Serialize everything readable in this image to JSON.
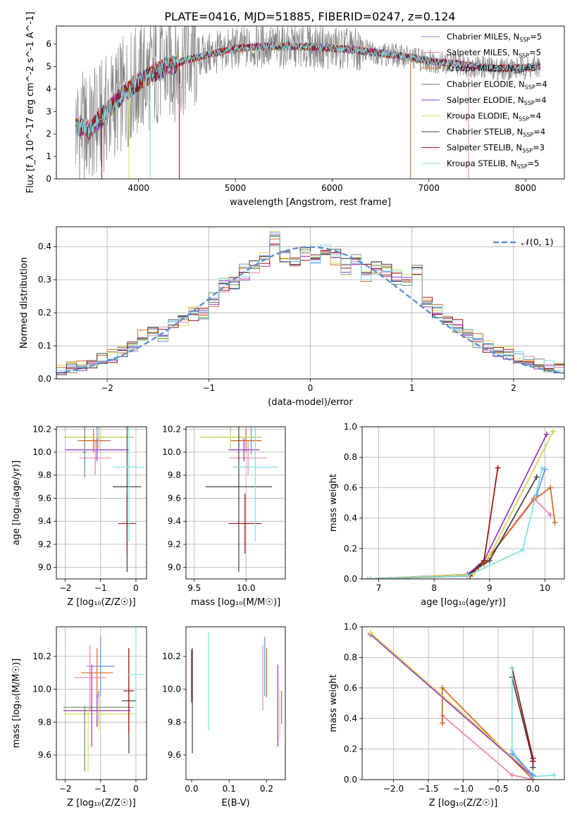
{
  "figure": {
    "title": "PLATE=0416, MJD=51885, FIBERID=0247, z=0.124"
  },
  "colors": {
    "chabrier_miles": "#6495ed",
    "salpeter_miles": "#f080b0",
    "kroupa_miles": "#d2691e",
    "chabrier_elodie": "#708c70",
    "salpeter_elodie": "#9932cc",
    "kroupa_elodie": "#dddd55",
    "chabrier_stelib": "#404040",
    "salpeter_stelib": "#a01010",
    "kroupa_stelib": "#80e0e0",
    "grid": "#b0b0b0",
    "spectrum_data": "#808080"
  },
  "chart_data": [
    {
      "id": "spectrum",
      "type": "line",
      "xlabel": "wavelength [Angstrom, rest frame]",
      "ylabel": "Flux [f_λ 10^-17 erg cm^-2 s^-1 A^-1]",
      "xlim": [
        3150,
        8400
      ],
      "ylim": [
        0,
        6.8
      ],
      "xticks": [
        4000,
        5000,
        6000,
        7000,
        8000
      ],
      "yticks": [
        0,
        1,
        2,
        3,
        4,
        5,
        6
      ],
      "grid": false,
      "legend_position": "right",
      "legend": [
        {
          "label": "Chabrier MILES, N",
          "sub": "SSP",
          "suffix": "=5",
          "color_key": "chabrier_miles"
        },
        {
          "label": "Salpeter MILES, N",
          "sub": "SSP",
          "suffix": "=5",
          "color_key": "salpeter_miles"
        },
        {
          "label": "Kroupa MILES, N",
          "sub": "SSP",
          "suffix": "=5",
          "color_key": "kroupa_miles"
        },
        {
          "label": "Chabrier ELODIE, N",
          "sub": "SSP",
          "suffix": "=4",
          "color_key": "chabrier_elodie"
        },
        {
          "label": "Salpeter ELODIE, N",
          "sub": "SSP",
          "suffix": "=4",
          "color_key": "salpeter_elodie"
        },
        {
          "label": "Kroupa ELODIE, N",
          "sub": "SSP",
          "suffix": "=4",
          "color_key": "kroupa_elodie"
        },
        {
          "label": "Chabrier STELIB, N",
          "sub": "SSP",
          "suffix": "=4",
          "color_key": "chabrier_stelib"
        },
        {
          "label": "Salpeter STELIB, N",
          "sub": "SSP",
          "suffix": "=3",
          "color_key": "salpeter_stelib"
        },
        {
          "label": "Kroupa STELIB, N",
          "sub": "SSP",
          "suffix": "=5",
          "color_key": "kroupa_stelib"
        }
      ],
      "continuum": {
        "x": [
          3350,
          3500,
          3650,
          3800,
          3950,
          4100,
          4300,
          4500,
          4700,
          5000,
          5300,
          5600,
          5900,
          6200,
          6500,
          6800,
          7100,
          7400,
          7700,
          8000,
          8150
        ],
        "y": [
          2.3,
          2.2,
          2.9,
          3.6,
          4.2,
          4.6,
          5.0,
          5.3,
          5.5,
          5.8,
          5.9,
          5.9,
          5.85,
          5.75,
          5.6,
          5.4,
          5.2,
          5.05,
          4.9,
          4.95,
          5.0
        ]
      },
      "data_range": [
        3350,
        8150
      ],
      "model_range": [
        3350,
        8150
      ],
      "edge_drops": [
        3620,
        3900,
        4120,
        4420,
        6810,
        7410
      ]
    },
    {
      "id": "residuals",
      "type": "step-histogram",
      "xlabel": "(data-model)/error",
      "ylabel": "Normed distribution",
      "xlim": [
        -2.5,
        2.5
      ],
      "ylim": [
        0,
        0.46
      ],
      "xticks": [
        -2,
        -1,
        0,
        1,
        2
      ],
      "yticks": [
        0.0,
        0.1,
        0.2,
        0.3,
        0.4
      ],
      "grid": true,
      "legend_position": "top-right",
      "reference_label": "𝒩(0, 1)",
      "bin_edges_start": -2.5,
      "bin_width": 0.1,
      "heights": [
        [
          0.025,
          0.03,
          0.04,
          0.045,
          0.06,
          0.07,
          0.08,
          0.1,
          0.12,
          0.15,
          0.13,
          0.17,
          0.18,
          0.2,
          0.19,
          0.25,
          0.29,
          0.28,
          0.33,
          0.35,
          0.36,
          0.43,
          0.37,
          0.35,
          0.38,
          0.36,
          0.37,
          0.38,
          0.35,
          0.36,
          0.32,
          0.34,
          0.33,
          0.3,
          0.29,
          0.33,
          0.22,
          0.2,
          0.18,
          0.16,
          0.14,
          0.11,
          0.1,
          0.085,
          0.07,
          0.065,
          0.05,
          0.045,
          0.035,
          0.03
        ],
        [
          0.02,
          0.025,
          0.035,
          0.045,
          0.055,
          0.065,
          0.075,
          0.095,
          0.115,
          0.145,
          0.14,
          0.16,
          0.175,
          0.19,
          0.2,
          0.24,
          0.28,
          0.29,
          0.31,
          0.33,
          0.35,
          0.42,
          0.39,
          0.36,
          0.37,
          0.37,
          0.38,
          0.37,
          0.34,
          0.35,
          0.33,
          0.33,
          0.32,
          0.31,
          0.3,
          0.32,
          0.23,
          0.19,
          0.17,
          0.17,
          0.13,
          0.12,
          0.095,
          0.08,
          0.075,
          0.06,
          0.055,
          0.04,
          0.03,
          0.03
        ],
        [
          0.03,
          0.035,
          0.04,
          0.05,
          0.06,
          0.075,
          0.085,
          0.1,
          0.13,
          0.15,
          0.12,
          0.16,
          0.17,
          0.21,
          0.2,
          0.23,
          0.29,
          0.3,
          0.32,
          0.34,
          0.37,
          0.44,
          0.38,
          0.34,
          0.38,
          0.37,
          0.39,
          0.36,
          0.33,
          0.36,
          0.31,
          0.33,
          0.34,
          0.32,
          0.3,
          0.33,
          0.24,
          0.21,
          0.19,
          0.15,
          0.15,
          0.12,
          0.1,
          0.09,
          0.08,
          0.07,
          0.05,
          0.045,
          0.04,
          0.035
        ]
      ]
    },
    {
      "id": "age-vs-Z",
      "type": "errorbar",
      "xlabel": "Z [log₁₀(Z/Z☉)]",
      "ylabel": "age  [log₁₀(age/yr)]",
      "xlim": [
        -2.25,
        0.3
      ],
      "ylim": [
        8.9,
        10.22
      ],
      "xticks": [
        -2,
        -1,
        0
      ],
      "yticks": [
        9.0,
        9.2,
        9.4,
        9.6,
        9.8,
        10.0,
        10.2
      ],
      "grid": true,
      "points": [
        {
          "color_key": "chabrier_miles",
          "x": -1.1,
          "y": 10.1,
          "xerr": 0.4,
          "yerr": 0.12
        },
        {
          "color_key": "salpeter_miles",
          "x": -1.15,
          "y": 9.95,
          "xerr": 0.45,
          "yerr": 0.15
        },
        {
          "color_key": "kroupa_miles",
          "x": -1.2,
          "y": 10.1,
          "xerr": 0.45,
          "yerr": 0.1
        },
        {
          "color_key": "chabrier_elodie",
          "x": -1.05,
          "y": 10.13,
          "xerr": 1.0,
          "yerr": 0.1
        },
        {
          "color_key": "salpeter_elodie",
          "x": -1.1,
          "y": 10.02,
          "xerr": 0.9,
          "yerr": 0.1
        },
        {
          "color_key": "kroupa_elodie",
          "x": -1.05,
          "y": 10.13,
          "xerr": 1.0,
          "yerr": 0.1
        },
        {
          "color_key": "chabrier_stelib",
          "x": -0.25,
          "y": 9.7,
          "xerr": 0.4,
          "yerr": 0.74
        },
        {
          "color_key": "salpeter_stelib",
          "x": -0.25,
          "y": 9.38,
          "xerr": 0.25,
          "yerr": 0.26
        },
        {
          "color_key": "kroupa_stelib",
          "x": -0.2,
          "y": 9.87,
          "xerr": 0.45,
          "yerr": 0.65
        },
        {
          "color_key": "chabrier_elodie",
          "x": -1.45,
          "y": 10.0,
          "xerr": 0.05,
          "yerr": 0.22
        }
      ]
    },
    {
      "id": "age-vs-mass",
      "type": "errorbar",
      "xlabel": "mass [log₁₀(M/M☉)]",
      "ylabel": "",
      "xlim": [
        9.42,
        10.38
      ],
      "ylim": [
        8.9,
        10.22
      ],
      "xticks": [
        9.5,
        10.0
      ],
      "yticks": [
        9.0,
        9.2,
        9.4,
        9.6,
        9.8,
        10.0,
        10.2
      ],
      "grid": true,
      "points": [
        {
          "color_key": "chabrier_miles",
          "x": 10.05,
          "y": 10.1,
          "xerr": 0.1,
          "yerr": 0.12
        },
        {
          "color_key": "salpeter_miles",
          "x": 10.02,
          "y": 9.95,
          "xerr": 0.18,
          "yerr": 0.15
        },
        {
          "color_key": "kroupa_miles",
          "x": 10.0,
          "y": 10.1,
          "xerr": 0.15,
          "yerr": 0.1
        },
        {
          "color_key": "chabrier_elodie",
          "x": 9.85,
          "y": 10.13,
          "xerr": 0.3,
          "yerr": 0.1
        },
        {
          "color_key": "salpeter_elodie",
          "x": 9.98,
          "y": 10.02,
          "xerr": 0.15,
          "yerr": 0.1
        },
        {
          "color_key": "kroupa_elodie",
          "x": 9.85,
          "y": 10.13,
          "xerr": 0.3,
          "yerr": 0.1
        },
        {
          "color_key": "chabrier_stelib",
          "x": 9.93,
          "y": 9.7,
          "xerr": 0.32,
          "yerr": 0.74
        },
        {
          "color_key": "salpeter_stelib",
          "x": 9.99,
          "y": 9.38,
          "xerr": 0.16,
          "yerr": 0.26
        },
        {
          "color_key": "kroupa_stelib",
          "x": 10.09,
          "y": 9.87,
          "xerr": 0.22,
          "yerr": 0.65
        }
      ]
    },
    {
      "id": "massweight-vs-age",
      "type": "line",
      "xlabel": "age  [log₁₀(age/yr)]",
      "ylabel": "mass weight",
      "xlim": [
        6.7,
        10.35
      ],
      "ylim": [
        0,
        1.0
      ],
      "xticks": [
        7,
        8,
        9,
        10
      ],
      "yticks": [
        0.0,
        0.2,
        0.4,
        0.6,
        0.8,
        1.0
      ],
      "grid": true,
      "series": [
        {
          "color_key": "chabrier_miles",
          "x": [
            6.85,
            8.6,
            8.85,
            9.0,
            9.85,
            10.0
          ],
          "y": [
            0.0,
            0.02,
            0.1,
            0.15,
            0.55,
            0.72
          ]
        },
        {
          "color_key": "salpeter_miles",
          "x": [
            6.85,
            8.6,
            8.9,
            9.8,
            10.1
          ],
          "y": [
            0.0,
            0.02,
            0.1,
            0.53,
            0.42
          ]
        },
        {
          "color_key": "kroupa_miles",
          "x": [
            6.85,
            8.6,
            8.9,
            9.8,
            10.1,
            10.18
          ],
          "y": [
            0.0,
            0.02,
            0.1,
            0.52,
            0.6,
            0.37
          ]
        },
        {
          "color_key": "chabrier_elodie",
          "x": [
            6.8,
            8.7,
            9.0,
            10.15
          ],
          "y": [
            0.0,
            0.03,
            0.15,
            0.97
          ]
        },
        {
          "color_key": "salpeter_elodie",
          "x": [
            6.8,
            8.6,
            8.9,
            10.03
          ],
          "y": [
            0.0,
            0.03,
            0.12,
            0.95
          ]
        },
        {
          "color_key": "kroupa_elodie",
          "x": [
            6.8,
            8.7,
            9.0,
            10.15
          ],
          "y": [
            0.0,
            0.03,
            0.15,
            0.97
          ]
        },
        {
          "color_key": "chabrier_stelib",
          "x": [
            6.85,
            8.6,
            8.8,
            9.0,
            9.85
          ],
          "y": [
            0.0,
            0.02,
            0.08,
            0.12,
            0.67
          ]
        },
        {
          "color_key": "salpeter_stelib",
          "x": [
            6.85,
            8.65,
            8.9,
            9.15
          ],
          "y": [
            0.0,
            0.02,
            0.12,
            0.73
          ]
        },
        {
          "color_key": "kroupa_stelib",
          "x": [
            6.85,
            8.6,
            9.6,
            9.95
          ],
          "y": [
            0.0,
            0.02,
            0.19,
            0.73
          ]
        }
      ]
    },
    {
      "id": "mass-vs-Z",
      "type": "errorbar",
      "xlabel": "Z [log₁₀(Z/Z☉)]",
      "ylabel": "mass [log₁₀(M/M☉)]",
      "xlim": [
        -2.25,
        0.3
      ],
      "ylim": [
        9.45,
        10.38
      ],
      "xticks": [
        -2,
        -1,
        0
      ],
      "yticks": [
        9.6,
        9.8,
        10.0,
        10.2
      ],
      "grid": true,
      "points": [
        {
          "color_key": "chabrier_miles",
          "x": -1.0,
          "y": 10.14,
          "xerr": 0.4,
          "yerr": 0.18
        },
        {
          "color_key": "salpeter_miles",
          "x": -1.3,
          "y": 10.07,
          "xerr": 0.45,
          "yerr": 0.2
        },
        {
          "color_key": "kroupa_miles",
          "x": -1.1,
          "y": 10.1,
          "xerr": 0.45,
          "yerr": 0.15
        },
        {
          "color_key": "chabrier_elodie",
          "x": -1.05,
          "y": 9.89,
          "xerr": 1.0,
          "yerr": 0.1
        },
        {
          "color_key": "salpeter_elodie",
          "x": -1.1,
          "y": 9.87,
          "xerr": 0.95,
          "yerr": 0.1
        },
        {
          "color_key": "kroupa_elodie",
          "x": -1.05,
          "y": 9.85,
          "xerr": 1.0,
          "yerr": 0.1
        },
        {
          "color_key": "chabrier_stelib",
          "x": -0.2,
          "y": 9.93,
          "xerr": 0.2,
          "yerr": 0.32
        },
        {
          "color_key": "salpeter_stelib",
          "x": -0.2,
          "y": 9.99,
          "xerr": 0.15,
          "yerr": 0.26
        },
        {
          "color_key": "kroupa_stelib",
          "x": 0.0,
          "y": 10.09,
          "xerr": 0.25,
          "yerr": 0.3
        },
        {
          "color_key": "kroupa_elodie",
          "x": -1.35,
          "y": 9.7,
          "xerr": 0.0,
          "yerr": 0.2
        },
        {
          "color_key": "chabrier_elodie",
          "x": -1.45,
          "y": 9.7,
          "xerr": 0.0,
          "yerr": 0.2
        },
        {
          "color_key": "salpeter_elodie",
          "x": -1.25,
          "y": 9.9,
          "xerr": 0.0,
          "yerr": 0.25
        }
      ]
    },
    {
      "id": "mass-vs-EBV",
      "type": "errorbar",
      "xlabel": "E(B-V)",
      "ylabel": "",
      "xlim": [
        -0.015,
        0.25
      ],
      "ylim": [
        9.45,
        10.38
      ],
      "xticks": [
        0.0,
        0.1,
        0.2
      ],
      "yticks": [
        9.6,
        9.8,
        10.0,
        10.2
      ],
      "grid": false,
      "points": [
        {
          "color_key": "chabrier_miles",
          "x": 0.195,
          "y": 10.14,
          "xerr": 0,
          "yerr": 0.18
        },
        {
          "color_key": "salpeter_miles",
          "x": 0.19,
          "y": 10.07,
          "xerr": 0,
          "yerr": 0.2
        },
        {
          "color_key": "kroupa_miles",
          "x": 0.2,
          "y": 10.1,
          "xerr": 0,
          "yerr": 0.15
        },
        {
          "color_key": "chabrier_elodie",
          "x": 0.24,
          "y": 9.89,
          "xerr": 0,
          "yerr": 0.1
        },
        {
          "color_key": "salpeter_elodie",
          "x": 0.23,
          "y": 9.9,
          "xerr": 0,
          "yerr": 0.25
        },
        {
          "color_key": "kroupa_elodie",
          "x": 0.235,
          "y": 9.85,
          "xerr": 0,
          "yerr": 0.15
        },
        {
          "color_key": "chabrier_stelib",
          "x": 0.002,
          "y": 9.93,
          "xerr": 0,
          "yerr": 0.32
        },
        {
          "color_key": "salpeter_stelib",
          "x": 0.0,
          "y": 10.08,
          "xerr": 0,
          "yerr": 0.16
        },
        {
          "color_key": "kroupa_stelib",
          "x": 0.045,
          "y": 10.05,
          "xerr": 0,
          "yerr": 0.3
        }
      ]
    },
    {
      "id": "massweight-vs-Z",
      "type": "line",
      "xlabel": "Z [log₁₀(Z/Z☉)]",
      "ylabel": "mass weight",
      "xlim": [
        -2.45,
        0.45
      ],
      "ylim": [
        0,
        1.0
      ],
      "xticks": [
        -2.0,
        -1.5,
        -1.0,
        -0.5,
        0.0
      ],
      "yticks": [
        0.0,
        0.2,
        0.4,
        0.6,
        0.8,
        1.0
      ],
      "grid": true,
      "series": [
        {
          "color_key": "salpeter_miles",
          "x": [
            -1.3,
            -1.3,
            -0.3,
            0.0
          ],
          "y": [
            0.37,
            0.42,
            0.03,
            0.0
          ]
        },
        {
          "color_key": "kroupa_miles",
          "x": [
            -1.3,
            -1.3,
            0.0
          ],
          "y": [
            0.37,
            0.6,
            0.0
          ]
        },
        {
          "color_key": "chabrier_elodie",
          "x": [
            -2.33,
            0.0
          ],
          "y": [
            0.96,
            0.03
          ]
        },
        {
          "color_key": "salpeter_elodie",
          "x": [
            -2.33,
            0.0
          ],
          "y": [
            0.95,
            0.02
          ]
        },
        {
          "color_key": "kroupa_elodie",
          "x": [
            -2.33,
            0.0
          ],
          "y": [
            0.96,
            0.03
          ]
        },
        {
          "color_key": "chabrier_stelib",
          "x": [
            -0.3,
            0.0,
            0.0
          ],
          "y": [
            0.67,
            0.12,
            0.08
          ]
        },
        {
          "color_key": "salpeter_stelib",
          "x": [
            -0.3,
            0.0,
            0.0
          ],
          "y": [
            0.73,
            0.14,
            0.12
          ]
        },
        {
          "color_key": "kroupa_stelib",
          "x": [
            -0.3,
            -0.3,
            0.0,
            0.3
          ],
          "y": [
            0.73,
            0.19,
            0.02,
            0.03
          ]
        },
        {
          "color_key": "chabrier_miles",
          "x": [
            -0.3,
            0.0
          ],
          "y": [
            0.17,
            0.03
          ]
        }
      ]
    }
  ]
}
